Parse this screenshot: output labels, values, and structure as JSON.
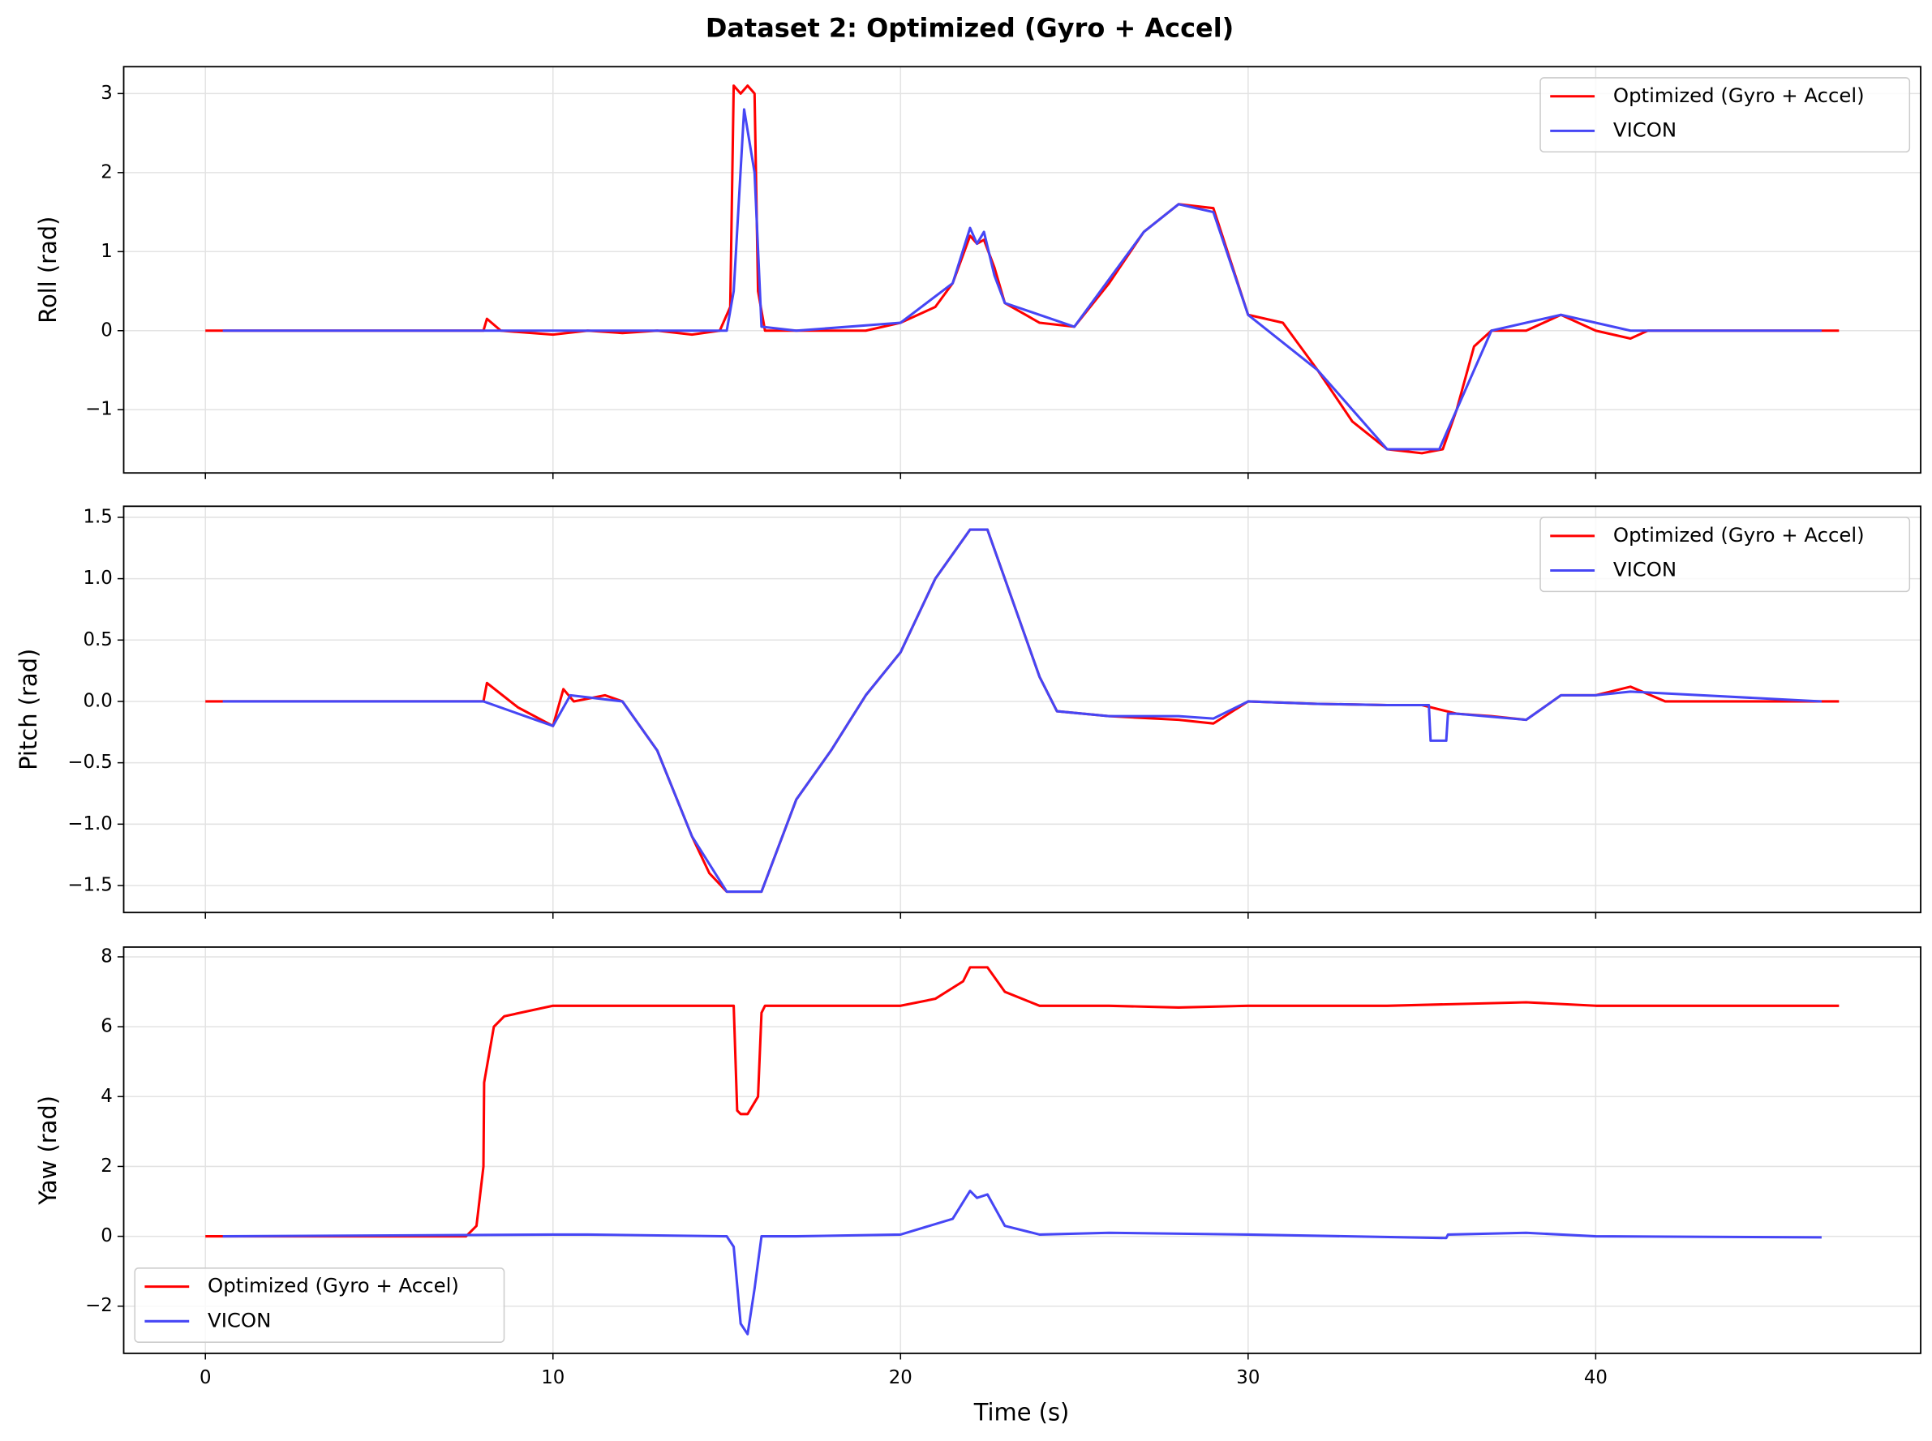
{
  "title": "Dataset 2: Optimized (Gyro + Accel)",
  "xlabel": "Time (s)",
  "chart_data": [
    {
      "type": "line",
      "ylabel": "Roll (rad)",
      "grid": true,
      "legend": "upper right",
      "ylim": [
        -1.8,
        3.34
      ],
      "yticks": [
        {
          "value": -1,
          "label": "−1"
        },
        0,
        1,
        2,
        3
      ],
      "series": [
        {
          "name": "Optimized (Gyro + Accel)",
          "color": "#ff0000",
          "x": [
            0,
            8,
            8.1,
            8.5,
            10,
            11,
            12,
            13,
            14,
            14.8,
            15.1,
            15.2,
            15.4,
            15.6,
            15.8,
            15.9,
            16.1,
            17,
            19,
            20,
            21,
            21.5,
            22,
            22.2,
            22.4,
            22.7,
            23,
            24,
            25,
            26,
            27,
            28,
            29,
            30,
            31,
            32,
            33,
            34,
            35,
            35.6,
            36,
            36.5,
            37,
            38,
            39,
            40,
            41,
            41.5,
            47
          ],
          "values": [
            0,
            0,
            0.15,
            0,
            -0.05,
            0,
            -0.03,
            0,
            -0.05,
            0,
            0.3,
            3.1,
            3.0,
            3.1,
            3.0,
            0.5,
            0,
            0,
            0,
            0.1,
            0.3,
            0.6,
            1.2,
            1.1,
            1.15,
            0.8,
            0.35,
            0.1,
            0.05,
            0.6,
            1.25,
            1.6,
            1.55,
            0.2,
            0.1,
            -0.5,
            -1.15,
            -1.5,
            -1.55,
            -1.5,
            -1.0,
            -0.2,
            0,
            0,
            0.2,
            0,
            -0.1,
            0,
            0
          ]
        },
        {
          "name": "VICON",
          "color": "#4646f5",
          "x": [
            0.5,
            8,
            10,
            12,
            14,
            15,
            15.2,
            15.5,
            15.8,
            16,
            17,
            20,
            21.5,
            22,
            22.2,
            22.4,
            22.7,
            23,
            25,
            27,
            28,
            29,
            30,
            32,
            34,
            35.5,
            36,
            37,
            39,
            41,
            46.5
          ],
          "values": [
            0,
            0,
            0,
            0,
            0,
            0,
            0.5,
            2.8,
            2.0,
            0.05,
            0,
            0.1,
            0.6,
            1.3,
            1.1,
            1.25,
            0.7,
            0.35,
            0.05,
            1.25,
            1.6,
            1.5,
            0.2,
            -0.5,
            -1.5,
            -1.5,
            -1.0,
            0,
            0.2,
            0,
            0
          ]
        }
      ]
    },
    {
      "type": "line",
      "ylabel": "Pitch (rad)",
      "grid": true,
      "legend": "upper right",
      "ylim": [
        -1.72,
        1.59
      ],
      "yticks": [
        {
          "value": -1.5,
          "label": "−1.5"
        },
        {
          "value": -1.0,
          "label": "−1.0"
        },
        {
          "value": -0.5,
          "label": "−0.5"
        },
        {
          "value": 0,
          "label": "0.0"
        },
        0.5,
        {
          "value": 1.0,
          "label": "1.0"
        },
        1.5
      ],
      "series": [
        {
          "name": "Optimized (Gyro + Accel)",
          "color": "#ff0000",
          "x": [
            0,
            8,
            8.1,
            9,
            10,
            10.3,
            10.6,
            11.5,
            12,
            13,
            14,
            14.5,
            15,
            16,
            17,
            18,
            19,
            20,
            21,
            22,
            22.5,
            23,
            24,
            24.5,
            26,
            28,
            29,
            30,
            32,
            34,
            35,
            36,
            37,
            38,
            39,
            40,
            41,
            42,
            47
          ],
          "values": [
            0,
            0,
            0.15,
            -0.05,
            -0.2,
            0.1,
            0,
            0.05,
            0,
            -0.4,
            -1.1,
            -1.4,
            -1.55,
            -1.55,
            -0.8,
            -0.4,
            0.05,
            0.4,
            1.0,
            1.4,
            1.4,
            1.0,
            0.2,
            -0.08,
            -0.12,
            -0.15,
            -0.18,
            0,
            -0.02,
            -0.03,
            -0.03,
            -0.1,
            -0.12,
            -0.15,
            0.05,
            0.05,
            0.12,
            0,
            0
          ]
        },
        {
          "name": "VICON",
          "color": "#4646f5",
          "x": [
            0.5,
            8,
            10,
            10.5,
            12,
            13,
            14,
            15,
            16,
            17,
            18,
            19,
            20,
            21,
            22,
            22.5,
            23,
            24,
            24.5,
            26,
            28,
            29,
            30,
            32,
            34,
            35.2,
            35.25,
            35.7,
            35.75,
            36,
            38,
            39,
            40,
            41,
            46.5
          ],
          "values": [
            0,
            0,
            -0.2,
            0.05,
            0,
            -0.4,
            -1.1,
            -1.55,
            -1.55,
            -0.8,
            -0.4,
            0.05,
            0.4,
            1.0,
            1.4,
            1.4,
            1.0,
            0.2,
            -0.08,
            -0.12,
            -0.12,
            -0.14,
            0,
            -0.02,
            -0.03,
            -0.03,
            -0.32,
            -0.32,
            -0.1,
            -0.1,
            -0.15,
            0.05,
            0.05,
            0.08,
            0
          ]
        }
      ]
    },
    {
      "type": "line",
      "ylabel": "Yaw (rad)",
      "grid": true,
      "legend": "lower left",
      "xlim": [
        -2.35,
        49.35
      ],
      "xticks": [
        0,
        10,
        20,
        30,
        40
      ],
      "ylim": [
        -3.35,
        8.28
      ],
      "yticks": [
        {
          "value": -2,
          "label": "−2"
        },
        0,
        2,
        4,
        6,
        8
      ],
      "series": [
        {
          "name": "Optimized (Gyro + Accel)",
          "color": "#ff0000",
          "x": [
            0,
            7.5,
            7.8,
            8,
            8.02,
            8.3,
            8.6,
            10,
            11,
            15,
            15.2,
            15.3,
            15.4,
            15.6,
            15.9,
            16,
            16.1,
            18,
            20,
            21,
            21.8,
            22,
            22.5,
            23,
            24,
            26,
            28,
            30,
            34,
            38,
            40,
            47
          ],
          "values": [
            0,
            0,
            0.3,
            2,
            4.4,
            6,
            6.3,
            6.6,
            6.6,
            6.6,
            6.6,
            3.6,
            3.5,
            3.5,
            4,
            6.4,
            6.6,
            6.6,
            6.6,
            6.8,
            7.3,
            7.7,
            7.7,
            7.0,
            6.6,
            6.6,
            6.55,
            6.6,
            6.6,
            6.7,
            6.6,
            6.6
          ]
        },
        {
          "name": "VICON",
          "color": "#4646f5",
          "x": [
            0.5,
            10,
            11,
            15,
            15.2,
            15.4,
            15.6,
            15.8,
            16,
            17,
            20,
            21.5,
            22,
            22.2,
            22.5,
            23,
            24,
            26,
            30,
            35.7,
            35.75,
            38,
            40,
            46.5
          ],
          "values": [
            0,
            0.05,
            0.05,
            0,
            -0.3,
            -2.5,
            -2.8,
            -1.5,
            0,
            0,
            0.05,
            0.5,
            1.3,
            1.1,
            1.2,
            0.3,
            0.05,
            0.1,
            0.05,
            -0.05,
            0.05,
            0.1,
            0,
            -0.03
          ]
        }
      ]
    }
  ]
}
